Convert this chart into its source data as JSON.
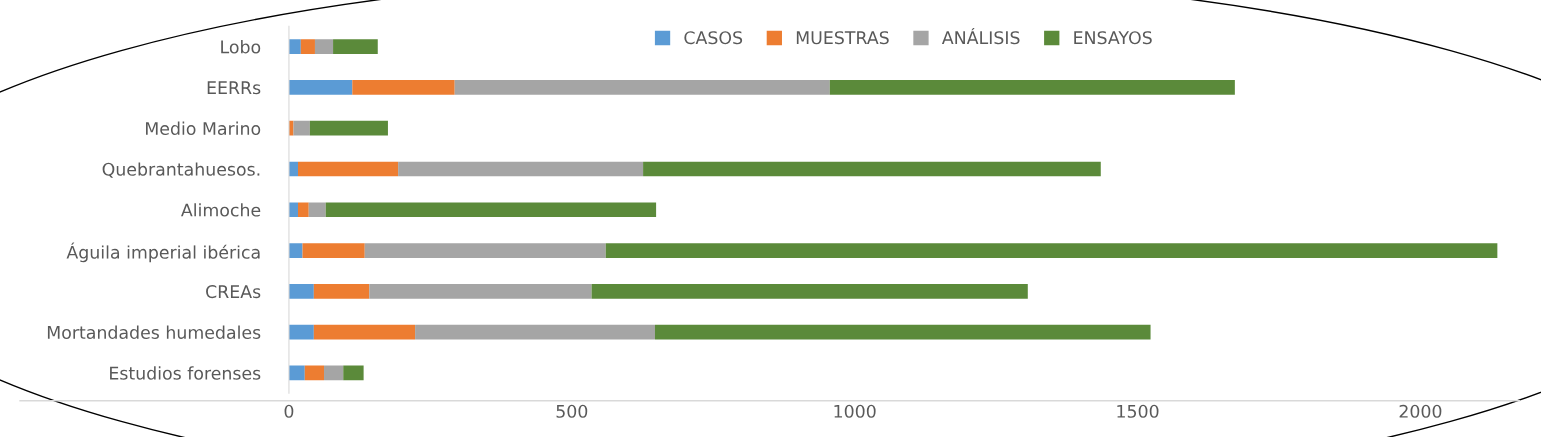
{
  "chart_data": {
    "type": "bar",
    "orientation": "horizontal",
    "stacked": true,
    "categories": [
      "Lobo",
      "EERRs",
      "Medio Marino",
      "Quebrantahuesos.",
      "Alimoche",
      "Águila imperial ibérica",
      "CREAs",
      "Mortandades humedales",
      "Estudios forenses"
    ],
    "series": [
      {
        "name": "CASOS",
        "color": "#5b9bd5",
        "values": [
          21,
          112,
          null,
          16,
          16,
          24,
          44,
          44,
          28
        ]
      },
      {
        "name": "MUESTRAS",
        "color": "#ed7d31",
        "values": [
          25,
          181,
          8,
          177,
          19,
          110,
          98,
          179,
          34
        ]
      },
      {
        "name": "ANÁLISIS",
        "color": "#a5a5a5",
        "values": [
          32,
          663,
          29,
          433,
          30,
          426,
          393,
          424,
          34
        ]
      },
      {
        "name": "ENSAYOS",
        "color": "#5b8a3a",
        "values": [
          79,
          716,
          138,
          809,
          584,
          1576,
          771,
          876,
          36
        ]
      }
    ],
    "xlim": [
      0,
      2175
    ],
    "xticks": [
      0,
      500,
      1000,
      1500,
      2000
    ],
    "grid": false,
    "legend": "top"
  }
}
